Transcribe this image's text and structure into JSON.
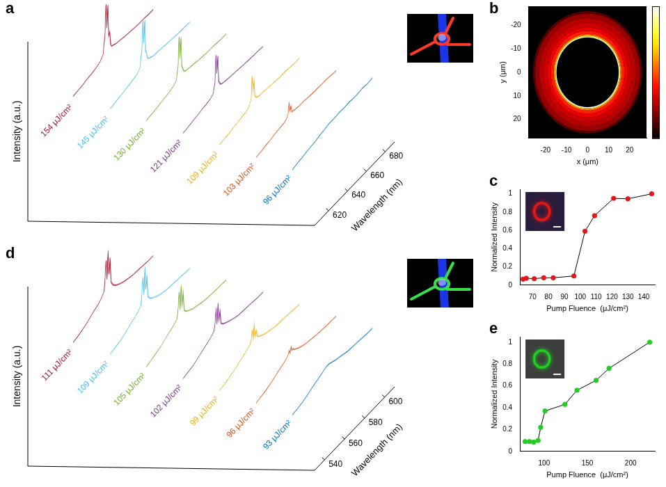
{
  "chart_data": [
    {
      "panel_label": "a",
      "type": "waterfall",
      "x_label": "Wavelength (nm)",
      "y_label": "Intensity (a.u.)",
      "x": [
        605,
        610,
        615,
        620,
        625,
        630,
        634,
        637,
        639,
        640,
        641,
        642,
        643,
        644,
        645,
        646,
        648,
        651,
        655,
        660,
        665,
        670,
        675,
        680,
        685,
        690
      ],
      "xlim": [
        605,
        690
      ],
      "xticks": [
        620,
        640,
        660,
        680
      ],
      "ylim": [
        0,
        1
      ],
      "tick_labels": "x",
      "series": [
        {
          "name": "154 μJ/cm²",
          "color": "#a2142f",
          "values": [
            0.1,
            0.11,
            0.12,
            0.14,
            0.15,
            0.17,
            0.2,
            0.26,
            0.55,
            0.97,
            0.6,
            0.93,
            0.45,
            0.5,
            0.3,
            0.25,
            0.24,
            0.22,
            0.21,
            0.19,
            0.18,
            0.17,
            0.16,
            0.16,
            0.15,
            0.15
          ]
        },
        {
          "name": "145 μJ/cm²",
          "color": "#4dbeee",
          "values": [
            0.09,
            0.1,
            0.12,
            0.13,
            0.15,
            0.17,
            0.19,
            0.24,
            0.5,
            0.9,
            0.55,
            0.88,
            0.4,
            0.35,
            0.27,
            0.24,
            0.23,
            0.21,
            0.2,
            0.19,
            0.18,
            0.17,
            0.16,
            0.15,
            0.15,
            0.14
          ]
        },
        {
          "name": "130 μJ/cm²",
          "color": "#77ac30",
          "values": [
            0.09,
            0.1,
            0.11,
            0.13,
            0.14,
            0.16,
            0.18,
            0.22,
            0.42,
            0.84,
            0.5,
            0.8,
            0.35,
            0.3,
            0.25,
            0.23,
            0.22,
            0.21,
            0.2,
            0.18,
            0.17,
            0.16,
            0.16,
            0.15,
            0.14,
            0.14
          ]
        },
        {
          "name": "121 μJ/cm²",
          "color": "#7e2f8e",
          "values": [
            0.08,
            0.09,
            0.11,
            0.12,
            0.14,
            0.15,
            0.17,
            0.2,
            0.35,
            0.74,
            0.45,
            0.7,
            0.3,
            0.26,
            0.23,
            0.22,
            0.21,
            0.2,
            0.19,
            0.18,
            0.17,
            0.16,
            0.15,
            0.14,
            0.14,
            0.13
          ]
        },
        {
          "name": "109 μJ/cm²",
          "color": "#edb120",
          "values": [
            0.08,
            0.09,
            0.1,
            0.12,
            0.13,
            0.15,
            0.16,
            0.19,
            0.28,
            0.6,
            0.35,
            0.5,
            0.25,
            0.23,
            0.21,
            0.2,
            0.19,
            0.19,
            0.18,
            0.17,
            0.16,
            0.15,
            0.15,
            0.14,
            0.13,
            0.13
          ]
        },
        {
          "name": "103 μJ/cm²",
          "color": "#d95319",
          "values": [
            0.07,
            0.08,
            0.1,
            0.11,
            0.13,
            0.14,
            0.15,
            0.17,
            0.22,
            0.36,
            0.24,
            0.3,
            0.2,
            0.19,
            0.19,
            0.18,
            0.18,
            0.17,
            0.17,
            0.16,
            0.15,
            0.15,
            0.14,
            0.14,
            0.13,
            0.12
          ]
        },
        {
          "name": "96 μJ/cm²",
          "color": "#0072bd",
          "values": [
            0.06,
            0.08,
            0.09,
            0.11,
            0.12,
            0.13,
            0.15,
            0.16,
            0.16,
            0.17,
            0.17,
            0.17,
            0.18,
            0.18,
            0.18,
            0.18,
            0.18,
            0.18,
            0.19,
            0.18,
            0.19,
            0.18,
            0.18,
            0.19,
            0.18,
            0.19
          ]
        }
      ]
    },
    {
      "panel_label": "b",
      "type": "heatmap",
      "x_label": "x (μm)",
      "y_label": "y (μm)",
      "xlim": [
        -28,
        28
      ],
      "xticks": [
        -20,
        -10,
        0,
        10,
        20
      ],
      "ylim": [
        28,
        -28
      ],
      "yticks": [
        -20,
        -10,
        0,
        10,
        20
      ],
      "grid": false,
      "radial_profile": {
        "center": [
          0,
          0
        ],
        "r_edges": [
          0,
          14.8,
          15.2,
          15.6,
          16.2,
          17.5,
          19,
          21,
          23,
          25,
          26,
          40
        ],
        "values": [
          0,
          1,
          0.8,
          0.55,
          0.42,
          0.35,
          0.3,
          0.27,
          0.22,
          0.12,
          0
        ]
      },
      "colorbar_range": [
        0,
        1
      ]
    },
    {
      "panel_label": "c",
      "type": "line",
      "x_label": "Pump Fluence  (μJ/cm²)",
      "y_label": "Normalized Intensity",
      "x": [
        64,
        66,
        71,
        77,
        83,
        96,
        103,
        109,
        121,
        130,
        145
      ],
      "values": [
        0.065,
        0.075,
        0.07,
        0.08,
        0.08,
        0.1,
        0.59,
        0.76,
        0.95,
        0.945,
        1
      ],
      "color": "#e01818",
      "marker": "circle",
      "line_style": "solid",
      "xlim": [
        62,
        147
      ],
      "xticks": [
        70,
        80,
        90,
        100,
        110,
        120,
        130,
        140
      ],
      "ylim": [
        0,
        1.05
      ],
      "yticks": [
        0,
        0.2,
        0.4,
        0.6,
        0.8,
        1
      ],
      "grid": false
    },
    {
      "panel_label": "d",
      "type": "waterfall",
      "x_label": "Wavelength (nm)",
      "y_label": "Intensity (a.u.)",
      "x": [
        530,
        535,
        540,
        545,
        550,
        555,
        558,
        561,
        562,
        563,
        564,
        565,
        566,
        567,
        568,
        570,
        573,
        577,
        581,
        585,
        590,
        595,
        600,
        605,
        610
      ],
      "xlim": [
        530,
        610
      ],
      "xticks": [
        540,
        560,
        580,
        600
      ],
      "ylim": [
        0,
        1
      ],
      "tick_labels": "x",
      "series": [
        {
          "name": "111 μJ/cm²",
          "color": "#a2142f",
          "values": [
            0.08,
            0.1,
            0.13,
            0.17,
            0.22,
            0.26,
            0.3,
            0.36,
            0.55,
            0.8,
            0.5,
            0.92,
            0.55,
            0.78,
            0.4,
            0.32,
            0.27,
            0.23,
            0.2,
            0.18,
            0.16,
            0.15,
            0.14,
            0.13,
            0.13
          ]
        },
        {
          "name": "109 μJ/cm²",
          "color": "#4dbeee",
          "values": [
            0.08,
            0.1,
            0.12,
            0.16,
            0.21,
            0.25,
            0.28,
            0.33,
            0.5,
            0.72,
            0.45,
            0.85,
            0.5,
            0.7,
            0.36,
            0.3,
            0.26,
            0.22,
            0.19,
            0.17,
            0.16,
            0.15,
            0.14,
            0.13,
            0.12
          ]
        },
        {
          "name": "105 μJ/cm²",
          "color": "#77ac30",
          "values": [
            0.07,
            0.09,
            0.12,
            0.15,
            0.2,
            0.24,
            0.27,
            0.31,
            0.45,
            0.68,
            0.4,
            0.75,
            0.45,
            0.62,
            0.33,
            0.28,
            0.25,
            0.21,
            0.19,
            0.17,
            0.15,
            0.14,
            0.13,
            0.13,
            0.12
          ]
        },
        {
          "name": "102 μJ/cm²",
          "color": "#7e2f8e",
          "values": [
            0.07,
            0.09,
            0.11,
            0.15,
            0.19,
            0.23,
            0.26,
            0.3,
            0.4,
            0.58,
            0.36,
            0.66,
            0.4,
            0.52,
            0.31,
            0.27,
            0.24,
            0.21,
            0.18,
            0.16,
            0.15,
            0.14,
            0.13,
            0.12,
            0.12
          ]
        },
        {
          "name": "99 μJ/cm²",
          "color": "#edb120",
          "values": [
            0.07,
            0.08,
            0.11,
            0.14,
            0.18,
            0.22,
            0.25,
            0.28,
            0.34,
            0.45,
            0.32,
            0.52,
            0.33,
            0.4,
            0.29,
            0.26,
            0.23,
            0.2,
            0.18,
            0.16,
            0.15,
            0.14,
            0.13,
            0.12,
            0.11
          ]
        },
        {
          "name": "96 μJ/cm²",
          "color": "#d95319",
          "values": [
            0.06,
            0.08,
            0.1,
            0.13,
            0.17,
            0.21,
            0.23,
            0.26,
            0.28,
            0.33,
            0.28,
            0.36,
            0.29,
            0.3,
            0.27,
            0.25,
            0.22,
            0.19,
            0.17,
            0.16,
            0.14,
            0.13,
            0.12,
            0.12,
            0.11
          ]
        },
        {
          "name": "93 μJ/cm²",
          "color": "#0072bd",
          "values": [
            0.06,
            0.07,
            0.09,
            0.12,
            0.16,
            0.19,
            0.21,
            0.23,
            0.24,
            0.24,
            0.25,
            0.25,
            0.25,
            0.25,
            0.24,
            0.23,
            0.21,
            0.19,
            0.17,
            0.15,
            0.14,
            0.13,
            0.12,
            0.11,
            0.11
          ]
        }
      ]
    },
    {
      "panel_label": "e",
      "type": "line",
      "x_label": "Pump Fluence  (μJ/cm²)",
      "y_label": "Normalized Intensity",
      "x": [
        78,
        83,
        88,
        93,
        96,
        101,
        124,
        138,
        160,
        175,
        222
      ],
      "values": [
        0.09,
        0.09,
        0.085,
        0.1,
        0.22,
        0.37,
        0.43,
        0.56,
        0.65,
        0.76,
        1
      ],
      "color": "#22cc22",
      "marker": "circle",
      "line_style": "solid",
      "xlim": [
        72,
        228
      ],
      "xticks": [
        100,
        150,
        200
      ],
      "ylim": [
        0,
        1.05
      ],
      "yticks": [
        0,
        0.2,
        0.4,
        0.6,
        0.8,
        1
      ],
      "grid": false
    }
  ]
}
